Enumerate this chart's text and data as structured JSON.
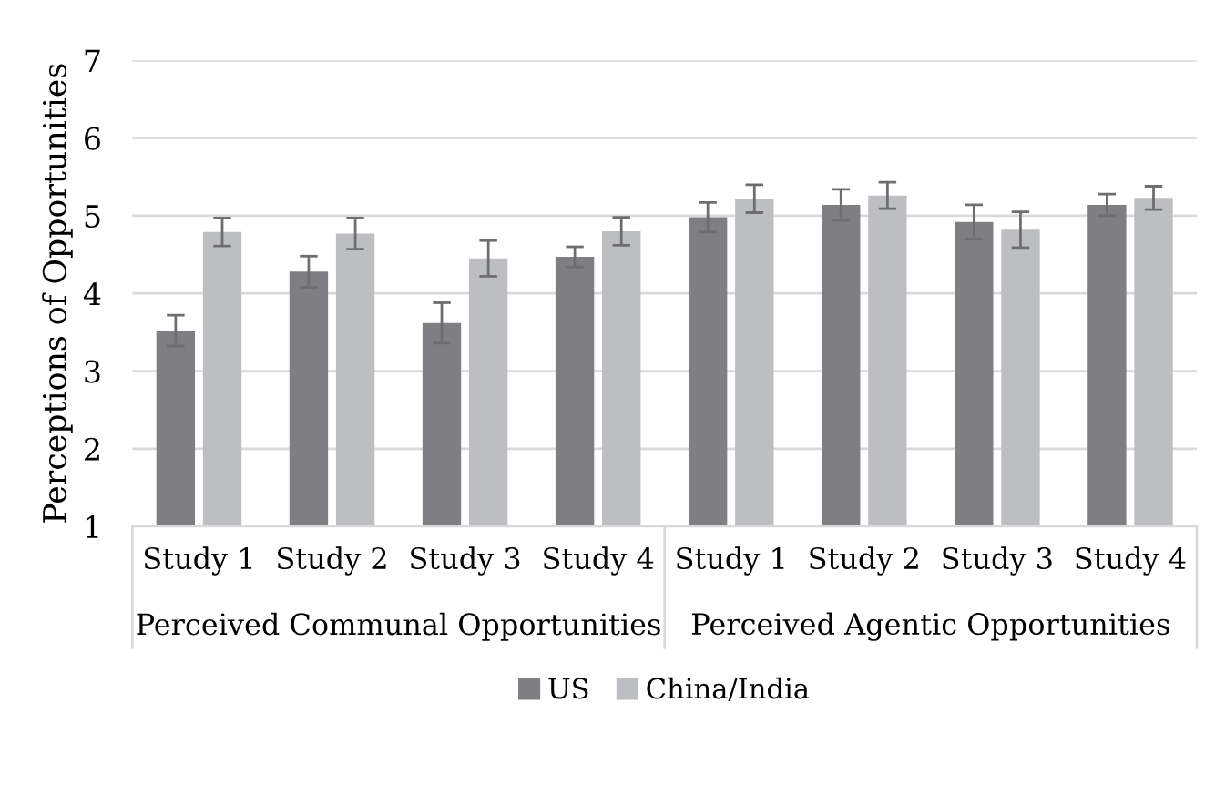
{
  "chart_data": {
    "type": "bar",
    "ylabel": "Perceptions of Opportunities",
    "categories": [
      "Study 1",
      "Study 2",
      "Study 3",
      "Study 4",
      "Study 1",
      "Study 2",
      "Study 3",
      "Study 4"
    ],
    "series": [
      {
        "name": "US",
        "color": "#7f7f83",
        "values": [
          3.52,
          4.28,
          3.62,
          4.47,
          4.98,
          5.14,
          4.92,
          5.14
        ],
        "errors": [
          0.2,
          0.2,
          0.26,
          0.13,
          0.19,
          0.2,
          0.22,
          0.14
        ]
      },
      {
        "name": "China/India",
        "color": "#bdbec2",
        "values": [
          4.79,
          4.77,
          4.45,
          4.8,
          5.22,
          5.26,
          4.82,
          5.23
        ],
        "errors": [
          0.18,
          0.2,
          0.23,
          0.18,
          0.18,
          0.17,
          0.23,
          0.15
        ]
      }
    ],
    "annotations": [
      "Perceived Communal Opportunities",
      "Perceived Agentic Opportunities"
    ],
    "ylim": [
      1,
      7
    ],
    "yticks": [
      1,
      2,
      3,
      4,
      5,
      6,
      7
    ],
    "grid": "y",
    "legend": "bottom"
  }
}
